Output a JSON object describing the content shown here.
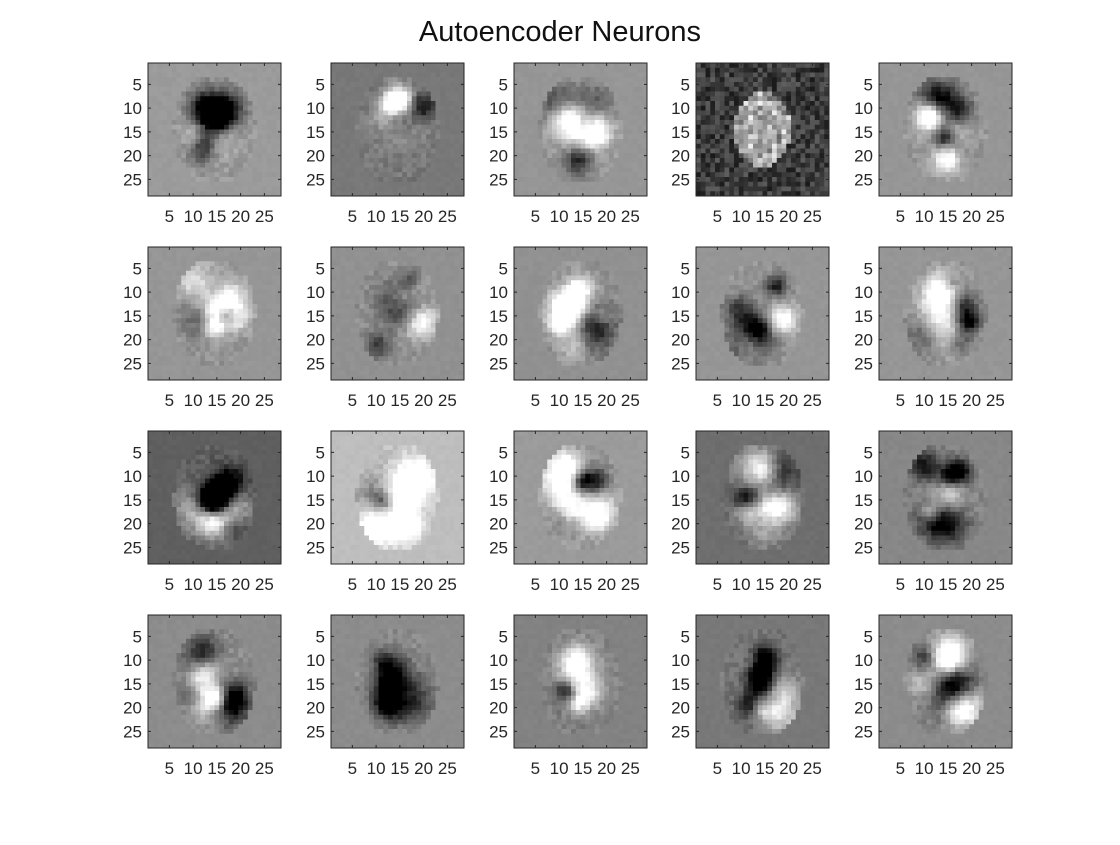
{
  "figure": {
    "title": "Autoencoder Neurons"
  },
  "chart_data": {
    "type": "heatmap",
    "title": "Autoencoder Neurons",
    "colormap": "gray",
    "grid_layout": {
      "rows": 4,
      "cols": 5
    },
    "image_size": [
      28,
      28
    ],
    "xlim": [
      0.5,
      28.5
    ],
    "ylim": [
      0.5,
      28.5
    ],
    "y_axis_direction": "reversed",
    "xticks": [
      5,
      10,
      15,
      20,
      25
    ],
    "yticks": [
      5,
      10,
      15,
      20,
      25
    ],
    "xtick_labels": [
      "5",
      "10",
      "15",
      "20",
      "25"
    ],
    "ytick_labels": [
      "5",
      "10",
      "15",
      "20",
      "25"
    ],
    "grid": false,
    "panels": [
      {
        "background_gray": 155
      },
      {
        "background_gray": 120
      },
      {
        "background_gray": 150
      },
      {
        "background_gray": 25
      },
      {
        "background_gray": 150
      },
      {
        "background_gray": 150
      },
      {
        "background_gray": 145
      },
      {
        "background_gray": 145
      },
      {
        "background_gray": 150
      },
      {
        "background_gray": 150
      },
      {
        "background_gray": 95
      },
      {
        "background_gray": 190
      },
      {
        "background_gray": 155
      },
      {
        "background_gray": 110
      },
      {
        "background_gray": 135
      },
      {
        "background_gray": 140
      },
      {
        "background_gray": 140
      },
      {
        "background_gray": 130
      },
      {
        "background_gray": 120
      },
      {
        "background_gray": 140
      }
    ]
  }
}
